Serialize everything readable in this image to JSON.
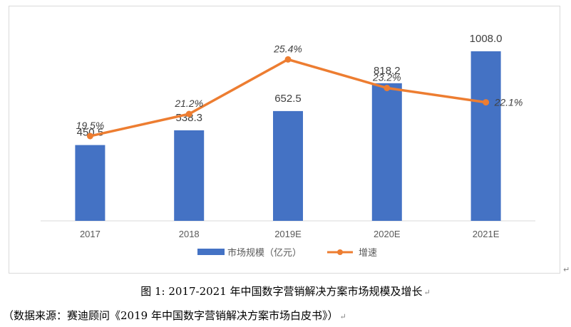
{
  "chart_data": {
    "type": "bar",
    "categories": [
      "2017",
      "2018",
      "2019E",
      "2020E",
      "2021E"
    ],
    "series": [
      {
        "name": "市场规模（亿元）",
        "type": "bar",
        "values": [
          450.5,
          538.3,
          652.5,
          818.2,
          1008.0
        ],
        "labels": [
          "450.5",
          "538.3",
          "652.5",
          "818.2",
          "1008.0"
        ],
        "color": "#4472c4"
      },
      {
        "name": "增速",
        "type": "line",
        "values": [
          19.5,
          21.2,
          25.4,
          23.2,
          22.1
        ],
        "labels": [
          "19.5%",
          "21.2%",
          "25.4%",
          "23.2%",
          "22.1%"
        ],
        "color": "#ed7d31"
      }
    ],
    "legend_position": "bottom",
    "grid": false
  },
  "caption": "图 1:   2017-2021 年中国数字营销解决方案市场规模及增长",
  "source": "（数据来源：赛迪顾问《2019 年中国数字营销解决方案市场白皮书》）",
  "para_mark": "↵"
}
